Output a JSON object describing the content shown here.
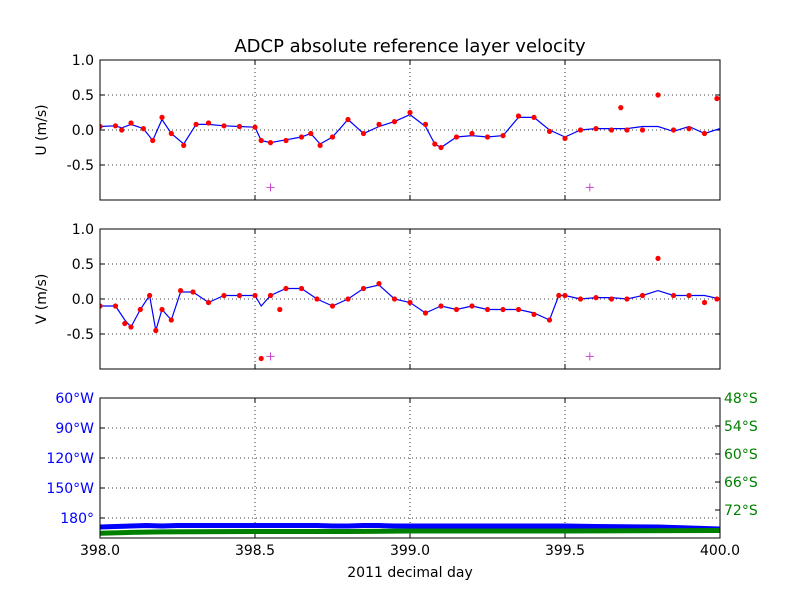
{
  "title": "ADCP absolute reference layer velocity",
  "chart_data": [
    {
      "type": "line",
      "panel": "u",
      "ylabel": "U (m/s)",
      "xlim": [
        398.0,
        400.0
      ],
      "ylim": [
        -1.0,
        1.0
      ],
      "yticks": [
        1.0,
        0.5,
        0.0,
        -0.5
      ],
      "grid": true,
      "series": [
        {
          "kind": "line",
          "color": "#0000ff",
          "x": [
            398.0,
            398.05,
            398.07,
            398.1,
            398.14,
            398.17,
            398.2,
            398.23,
            398.27,
            398.31,
            398.35,
            398.4,
            398.45,
            398.5,
            398.52,
            398.55,
            398.6,
            398.65,
            398.68,
            398.71,
            398.75,
            398.8,
            398.85,
            398.9,
            398.95,
            399.0,
            399.05,
            399.08,
            399.1,
            399.15,
            399.2,
            399.25,
            399.3,
            399.35,
            399.4,
            399.45,
            399.5,
            399.55,
            399.6,
            399.65,
            399.7,
            399.75,
            399.8,
            399.85,
            399.9,
            399.95,
            400.0
          ],
          "y": [
            0.05,
            0.06,
            0.03,
            0.08,
            0.02,
            -0.15,
            0.15,
            -0.05,
            -0.2,
            0.08,
            0.08,
            0.06,
            0.05,
            0.04,
            -0.15,
            -0.18,
            -0.14,
            -0.1,
            -0.05,
            -0.2,
            -0.1,
            0.15,
            -0.05,
            0.05,
            0.12,
            0.22,
            0.05,
            -0.2,
            -0.25,
            -0.1,
            -0.08,
            -0.1,
            -0.08,
            0.18,
            0.18,
            0.0,
            -0.1,
            0.0,
            0.02,
            0.02,
            0.02,
            0.05,
            0.05,
            -0.02,
            0.05,
            -0.05,
            0.02
          ]
        },
        {
          "kind": "points",
          "color": "#ff0000",
          "x": [
            398.0,
            398.05,
            398.07,
            398.1,
            398.14,
            398.17,
            398.2,
            398.23,
            398.27,
            398.31,
            398.35,
            398.4,
            398.45,
            398.5,
            398.52,
            398.55,
            398.6,
            398.65,
            398.68,
            398.71,
            398.75,
            398.8,
            398.85,
            398.9,
            398.95,
            399.0,
            399.05,
            399.08,
            399.1,
            399.15,
            399.2,
            399.25,
            399.3,
            399.35,
            399.4,
            399.45,
            399.5,
            399.55,
            399.6,
            399.65,
            399.68,
            399.7,
            399.75,
            399.8,
            399.85,
            399.9,
            399.95,
            399.99
          ],
          "y": [
            0.05,
            0.06,
            0.0,
            0.1,
            0.02,
            -0.15,
            0.18,
            -0.05,
            -0.22,
            0.08,
            0.1,
            0.06,
            0.05,
            0.04,
            -0.15,
            -0.18,
            -0.15,
            -0.1,
            -0.05,
            -0.22,
            -0.1,
            0.15,
            -0.05,
            0.08,
            0.12,
            0.25,
            0.08,
            -0.2,
            -0.25,
            -0.1,
            -0.05,
            -0.1,
            -0.08,
            0.2,
            0.18,
            -0.02,
            -0.12,
            0.0,
            0.02,
            0.0,
            0.32,
            0.0,
            0.0,
            0.5,
            0.0,
            0.02,
            -0.05,
            0.45
          ]
        },
        {
          "kind": "markers",
          "color": "#cc44cc",
          "x": [
            398.55,
            399.58
          ],
          "y": [
            -0.82,
            -0.82
          ]
        }
      ]
    },
    {
      "type": "line",
      "panel": "v",
      "ylabel": "V (m/s)",
      "xlim": [
        398.0,
        400.0
      ],
      "ylim": [
        -1.0,
        1.0
      ],
      "yticks": [
        1.0,
        0.5,
        0.0,
        -0.5
      ],
      "grid": true,
      "series": [
        {
          "kind": "line",
          "color": "#0000ff",
          "x": [
            398.0,
            398.05,
            398.08,
            398.1,
            398.13,
            398.16,
            398.18,
            398.2,
            398.23,
            398.26,
            398.3,
            398.35,
            398.4,
            398.45,
            398.5,
            398.52,
            398.55,
            398.6,
            398.65,
            398.7,
            398.75,
            398.8,
            398.85,
            398.9,
            398.95,
            399.0,
            399.05,
            399.1,
            399.15,
            399.2,
            399.25,
            399.3,
            399.35,
            399.4,
            399.45,
            399.48,
            399.5,
            399.55,
            399.6,
            399.65,
            399.7,
            399.75,
            399.8,
            399.85,
            399.9,
            399.95,
            400.0
          ],
          "y": [
            -0.1,
            -0.1,
            -0.3,
            -0.4,
            -0.15,
            0.05,
            -0.45,
            -0.15,
            -0.3,
            0.1,
            0.1,
            -0.05,
            0.05,
            0.05,
            0.05,
            -0.1,
            0.05,
            0.15,
            0.15,
            0.0,
            -0.1,
            0.0,
            0.15,
            0.2,
            0.0,
            -0.05,
            -0.2,
            -0.1,
            -0.15,
            -0.1,
            -0.15,
            -0.15,
            -0.15,
            -0.2,
            -0.3,
            0.05,
            0.05,
            0.0,
            0.02,
            0.02,
            0.0,
            0.05,
            0.12,
            0.05,
            0.05,
            0.05,
            0.0
          ]
        },
        {
          "kind": "points",
          "color": "#ff0000",
          "x": [
            398.0,
            398.05,
            398.08,
            398.1,
            398.13,
            398.16,
            398.18,
            398.2,
            398.23,
            398.26,
            398.3,
            398.35,
            398.4,
            398.45,
            398.5,
            398.52,
            398.55,
            398.58,
            398.6,
            398.65,
            398.7,
            398.75,
            398.8,
            398.85,
            398.9,
            398.95,
            399.0,
            399.05,
            399.1,
            399.15,
            399.2,
            399.25,
            399.3,
            399.35,
            399.4,
            399.45,
            399.48,
            399.5,
            399.55,
            399.6,
            399.65,
            399.7,
            399.75,
            399.8,
            399.85,
            399.9,
            399.95,
            399.99
          ],
          "y": [
            -0.1,
            -0.1,
            -0.35,
            -0.4,
            -0.15,
            0.05,
            -0.45,
            -0.15,
            -0.3,
            0.12,
            0.1,
            -0.05,
            0.05,
            0.05,
            0.05,
            -0.85,
            0.05,
            -0.15,
            0.15,
            0.15,
            0.0,
            -0.1,
            0.0,
            0.15,
            0.22,
            0.0,
            -0.05,
            -0.2,
            -0.1,
            -0.15,
            -0.1,
            -0.15,
            -0.15,
            -0.15,
            -0.22,
            -0.3,
            0.05,
            0.05,
            0.0,
            0.02,
            0.0,
            0.0,
            0.05,
            0.58,
            0.05,
            0.05,
            -0.05,
            0.0
          ]
        },
        {
          "kind": "markers",
          "color": "#cc44cc",
          "x": [
            398.55,
            399.58
          ],
          "y": [
            -0.82,
            -0.82
          ]
        }
      ]
    },
    {
      "type": "line",
      "panel": "position",
      "xlabel": "2011 decimal day",
      "xlim": [
        398.0,
        400.0
      ],
      "xticks": [
        398.0,
        398.5,
        399.0,
        399.5,
        400.0
      ],
      "ylim_left": [
        -200,
        -60
      ],
      "yticks_left": [
        -60,
        -90,
        -120,
        -150,
        -180
      ],
      "yticklabels_left": [
        "60°W",
        "90°W",
        "120°W",
        "150°W",
        "180°"
      ],
      "left_color": "#0000ff",
      "ylim_right": [
        -78,
        -48
      ],
      "yticks_right": [
        -48,
        -54,
        -60,
        -66,
        -72
      ],
      "yticklabels_right": [
        "48°S",
        "54°S",
        "60°S",
        "66°S",
        "72°S"
      ],
      "right_color": "#008000",
      "grid": true,
      "series": [
        {
          "axis": "left",
          "color": "#0000ff",
          "x": [
            398.0,
            398.05,
            398.1,
            398.15,
            398.2,
            398.25,
            398.5,
            398.7,
            398.75,
            398.8,
            398.85,
            398.9,
            398.95,
            399.0,
            399.5,
            399.6,
            399.8,
            399.9,
            400.0
          ],
          "y": [
            -189,
            -188.5,
            -188,
            -187.5,
            -188,
            -187.5,
            -187.5,
            -187.5,
            -188,
            -188,
            -187.5,
            -187.5,
            -188,
            -188,
            -188,
            -188.5,
            -189,
            -190,
            -191
          ]
        },
        {
          "axis": "right",
          "color": "#008000",
          "x": [
            398.0,
            398.1,
            398.2,
            398.5,
            398.8,
            399.0,
            399.5,
            400.0
          ],
          "y": [
            -77,
            -76.8,
            -76.7,
            -76.6,
            -76.6,
            -76.5,
            -76.5,
            -76.4
          ]
        }
      ]
    }
  ]
}
